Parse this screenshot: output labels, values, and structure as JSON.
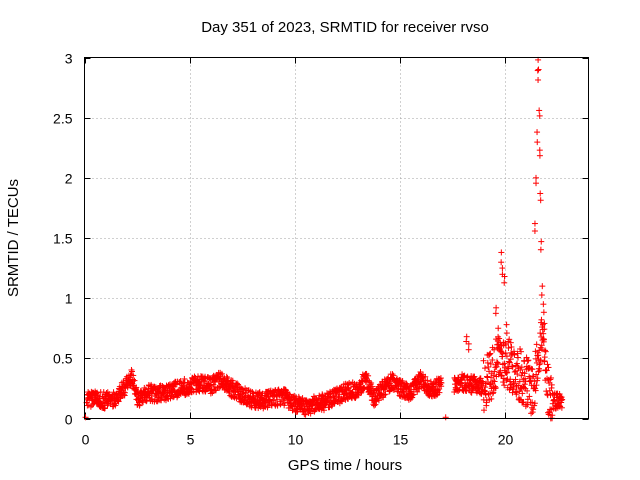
{
  "chart_data": {
    "type": "scatter",
    "title": "Day 351 of 2023, SRMTID for receiver rvso",
    "xlabel": "GPS time / hours",
    "ylabel": "SRMTID / TECUs",
    "xlim": [
      0,
      24
    ],
    "ylim": [
      0,
      3
    ],
    "xticks": [
      0,
      5,
      10,
      15,
      20
    ],
    "yticks": [
      0,
      0.5,
      1,
      1.5,
      2,
      2.5,
      3
    ],
    "xtick_labels": [
      "0",
      "5",
      "10",
      "15",
      "20"
    ],
    "ytick_labels": [
      "0",
      "0.5",
      "1",
      "1.5",
      "2",
      "2.5",
      "3"
    ],
    "grid": true,
    "marker": "+",
    "color": "#ff0000",
    "series": [
      {
        "name": "rvso",
        "baseline": [
          [
            0.0,
            0.01
          ],
          [
            0.1,
            0.15
          ],
          [
            0.5,
            0.17
          ],
          [
            1.0,
            0.15
          ],
          [
            1.5,
            0.17
          ],
          [
            2.0,
            0.28
          ],
          [
            2.3,
            0.35
          ],
          [
            2.5,
            0.16
          ],
          [
            3.0,
            0.22
          ],
          [
            3.5,
            0.2
          ],
          [
            4.0,
            0.22
          ],
          [
            4.5,
            0.25
          ],
          [
            5.0,
            0.27
          ],
          [
            5.5,
            0.29
          ],
          [
            6.0,
            0.27
          ],
          [
            6.5,
            0.33
          ],
          [
            7.0,
            0.25
          ],
          [
            7.5,
            0.2
          ],
          [
            8.0,
            0.16
          ],
          [
            8.5,
            0.15
          ],
          [
            9.0,
            0.17
          ],
          [
            9.5,
            0.18
          ],
          [
            10.0,
            0.12
          ],
          [
            10.5,
            0.1
          ],
          [
            11.0,
            0.12
          ],
          [
            11.5,
            0.14
          ],
          [
            12.0,
            0.18
          ],
          [
            12.5,
            0.23
          ],
          [
            13.0,
            0.24
          ],
          [
            13.4,
            0.33
          ],
          [
            13.8,
            0.17
          ],
          [
            14.2,
            0.24
          ],
          [
            14.6,
            0.31
          ],
          [
            15.0,
            0.26
          ],
          [
            15.5,
            0.2
          ],
          [
            16.0,
            0.33
          ],
          [
            16.5,
            0.24
          ],
          [
            17.0,
            0.28
          ],
          [
            17.5,
            0.27
          ],
          [
            18.0,
            0.3
          ],
          [
            18.5,
            0.28
          ],
          [
            19.0,
            0.27
          ],
          [
            19.5,
            0.42
          ],
          [
            19.9,
            0.5
          ],
          [
            20.2,
            0.45
          ],
          [
            20.6,
            0.38
          ],
          [
            21.0,
            0.32
          ],
          [
            21.4,
            0.22
          ],
          [
            21.6,
            0.55
          ],
          [
            21.8,
            0.7
          ],
          [
            22.0,
            0.28
          ],
          [
            22.3,
            0.15
          ],
          [
            22.7,
            0.15
          ]
        ],
        "gaps": [
          [
            17.0,
            17.6
          ]
        ],
        "isolated_points": [
          [
            17.2,
            0.01
          ]
        ],
        "peaks": [
          {
            "x": 18.2,
            "y": 0.68
          },
          {
            "x": 18.3,
            "y": 0.62
          },
          {
            "x": 19.6,
            "y": 0.92
          },
          {
            "x": 19.7,
            "y": 0.75
          },
          {
            "x": 19.85,
            "y": 1.38
          },
          {
            "x": 19.9,
            "y": 1.25
          },
          {
            "x": 20.0,
            "y": 1.18
          },
          {
            "x": 20.1,
            "y": 0.78
          },
          {
            "x": 20.3,
            "y": 0.63
          },
          {
            "x": 21.45,
            "y": 1.62
          },
          {
            "x": 21.5,
            "y": 2.0
          },
          {
            "x": 21.55,
            "y": 2.38
          },
          {
            "x": 21.6,
            "y": 2.98
          },
          {
            "x": 21.62,
            "y": 2.9
          },
          {
            "x": 21.65,
            "y": 2.56
          },
          {
            "x": 21.68,
            "y": 2.23
          },
          {
            "x": 21.7,
            "y": 1.87
          },
          {
            "x": 21.75,
            "y": 1.47
          },
          {
            "x": 21.8,
            "y": 1.1
          },
          {
            "x": 21.85,
            "y": 0.95
          },
          {
            "x": 21.9,
            "y": 0.79
          }
        ]
      }
    ]
  }
}
